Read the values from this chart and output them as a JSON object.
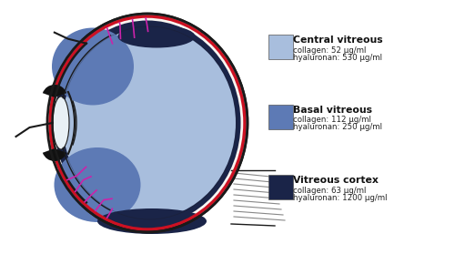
{
  "legend_items": [
    {
      "label": "Central vitreous",
      "color": "#a8bedd",
      "detail1": "collagen: 52 μg/ml",
      "detail2": "hyaluronan: 530 μg/ml"
    },
    {
      "label": "Basal vitreous",
      "color": "#5d7ab5",
      "detail1": "collagen: 112 μg/ml",
      "detail2": "hyaluronan: 250 μg/ml"
    },
    {
      "label": "Vitreous cortex",
      "color": "#1a2448",
      "detail1": "collagen: 63 μg/ml",
      "detail2": "hyaluronan: 1200 μg/ml"
    }
  ],
  "bg_color": "#ffffff",
  "vitreous_color": "#a8bedd",
  "basal_color": "#5d7ab5",
  "cortex_color": "#1a2448",
  "sclera_color": "#f8f6f2",
  "outline_color": "#1a1a1a",
  "choroid_color": "#cc1122",
  "magenta_color": "#cc22aa",
  "optic_nerve_color": "#888888"
}
